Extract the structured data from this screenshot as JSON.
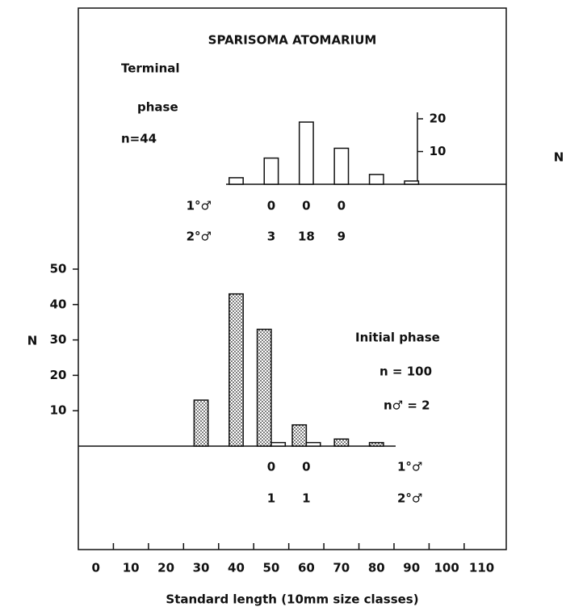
{
  "chart_data": [
    {
      "type": "bar",
      "title": "SPARISOMA ATOMARIUM",
      "annotations": [
        "Terminal",
        "phase",
        "n=44"
      ],
      "ylabel": "N",
      "xlim": [
        -5,
        117
      ],
      "ylim": [
        0,
        20
      ],
      "yticks": [
        10,
        20
      ],
      "series": [
        {
          "fill": "open",
          "x": [
            40,
            50,
            60,
            70,
            80,
            90
          ],
          "values": [
            2,
            8,
            19,
            11,
            3,
            1
          ]
        }
      ],
      "rows": [
        {
          "label": "1°♂",
          "x": [
            50,
            60,
            70
          ],
          "values": [
            0,
            0,
            0
          ]
        },
        {
          "label": "2°♂",
          "x": [
            50,
            60,
            70
          ],
          "values": [
            3,
            18,
            9
          ]
        }
      ]
    },
    {
      "type": "bar",
      "annotations": [
        "Initial phase",
        "n = 100",
        "n♂ = 2"
      ],
      "ylabel": "N",
      "xlabel": "Standard length (10mm size classes)",
      "xlim": [
        -5,
        117
      ],
      "xticks": [
        0,
        10,
        20,
        30,
        40,
        50,
        60,
        70,
        80,
        90,
        100,
        110
      ],
      "ylim": [
        0,
        50
      ],
      "yticks": [
        10,
        20,
        30,
        40,
        50
      ],
      "series": [
        {
          "fill": "stippled",
          "x": [
            30,
            40,
            50,
            60,
            70,
            80
          ],
          "values": [
            13,
            43,
            33,
            6,
            2,
            1
          ]
        },
        {
          "fill": "open",
          "x": [
            50,
            60
          ],
          "values": [
            1,
            1
          ]
        }
      ],
      "rows": [
        {
          "label": "1°♂",
          "x": [
            50,
            60
          ],
          "values": [
            0,
            0
          ]
        },
        {
          "label": "2°♂",
          "x": [
            50,
            60
          ],
          "values": [
            1,
            1
          ]
        }
      ]
    }
  ]
}
